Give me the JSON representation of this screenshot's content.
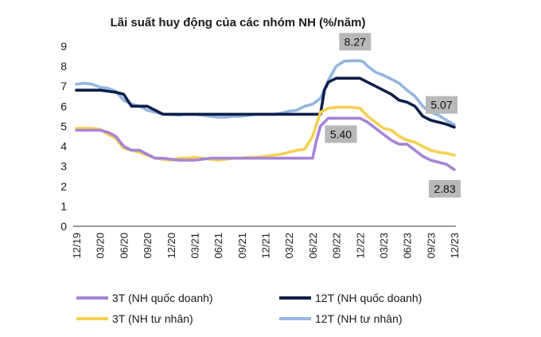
{
  "chart_data": {
    "type": "line",
    "title": "Lãi suất huy động của các nhóm NH (%/năm)",
    "ylim": [
      0,
      9
    ],
    "yticks": [
      "0",
      "1",
      "2",
      "3",
      "4",
      "5",
      "6",
      "7",
      "8",
      "9"
    ],
    "xticks": [
      "12/19",
      "03/20",
      "06/20",
      "09/20",
      "12/20",
      "03/21",
      "06/21",
      "09/21",
      "12/21",
      "03/22",
      "06/22",
      "09/22",
      "12/22",
      "03/23",
      "06/23",
      "09/23",
      "12/23"
    ],
    "xmax": 48,
    "series": [
      {
        "key": "s12_priv",
        "name": "12T (NH tư nhân)",
        "color": "#93b6e0",
        "x": [
          0,
          1,
          2,
          3,
          4,
          5,
          6,
          7,
          8,
          9,
          10,
          11,
          12,
          13,
          14,
          15,
          16,
          17,
          18,
          19,
          20,
          21,
          22,
          23,
          24,
          25,
          26,
          27,
          28,
          29,
          30,
          31,
          32,
          33,
          34,
          35,
          35.5,
          36,
          36.5,
          37,
          38,
          39,
          40,
          41,
          42,
          43,
          44,
          45,
          46,
          47,
          48
        ],
        "values": [
          7.1,
          7.15,
          7.1,
          6.95,
          6.9,
          6.75,
          6.3,
          6.1,
          6.0,
          5.8,
          5.7,
          5.6,
          5.6,
          5.55,
          5.6,
          5.6,
          5.55,
          5.5,
          5.45,
          5.45,
          5.5,
          5.5,
          5.55,
          5.6,
          5.6,
          5.6,
          5.65,
          5.75,
          5.8,
          6.0,
          6.1,
          6.4,
          7.3,
          8.0,
          8.25,
          8.27,
          8.27,
          8.27,
          8.2,
          8.0,
          7.7,
          7.55,
          7.35,
          7.15,
          6.8,
          6.5,
          6.0,
          5.7,
          5.55,
          5.3,
          5.07
        ]
      },
      {
        "key": "s12_state",
        "name": "12T (NH quốc doanh)",
        "color": "#0c1f4a",
        "x": [
          0,
          1,
          2,
          3,
          4,
          5,
          6,
          7,
          8,
          9,
          10,
          11,
          12,
          13,
          14,
          15,
          16,
          17,
          18,
          19,
          20,
          21,
          22,
          23,
          24,
          25,
          26,
          27,
          28,
          29,
          30,
          31,
          31.5,
          32,
          33,
          34,
          35,
          36,
          37,
          38,
          39,
          40,
          41,
          42,
          43,
          44,
          45,
          46,
          47,
          48
        ],
        "values": [
          6.8,
          6.8,
          6.8,
          6.8,
          6.75,
          6.7,
          6.6,
          6.0,
          6.0,
          6.0,
          5.8,
          5.6,
          5.6,
          5.6,
          5.6,
          5.6,
          5.6,
          5.6,
          5.6,
          5.6,
          5.6,
          5.6,
          5.6,
          5.6,
          5.6,
          5.6,
          5.6,
          5.6,
          5.6,
          5.6,
          5.6,
          5.6,
          6.8,
          7.2,
          7.4,
          7.4,
          7.4,
          7.4,
          7.2,
          7.0,
          6.8,
          6.6,
          6.3,
          6.2,
          6.0,
          5.5,
          5.3,
          5.2,
          5.1,
          4.95
        ]
      },
      {
        "key": "s3_priv",
        "name": "3T (NH tư nhân)",
        "color": "#f5d050",
        "x": [
          0,
          1,
          2,
          3,
          4,
          5,
          6,
          7,
          8,
          9,
          10,
          11,
          12,
          13,
          14,
          15,
          16,
          17,
          18,
          19,
          20,
          21,
          22,
          23,
          24,
          25,
          26,
          27,
          28,
          29,
          30,
          31,
          32,
          33,
          34,
          35,
          36,
          37,
          38,
          39,
          40,
          41,
          42,
          43,
          44,
          45,
          46,
          47,
          48
        ],
        "values": [
          4.9,
          4.9,
          4.9,
          4.85,
          4.6,
          4.4,
          3.9,
          3.8,
          3.7,
          3.55,
          3.4,
          3.35,
          3.3,
          3.4,
          3.4,
          3.45,
          3.4,
          3.35,
          3.3,
          3.35,
          3.4,
          3.4,
          3.45,
          3.45,
          3.5,
          3.55,
          3.6,
          3.7,
          3.8,
          3.85,
          4.5,
          5.7,
          5.9,
          5.95,
          5.95,
          5.95,
          5.9,
          5.5,
          5.2,
          4.9,
          4.8,
          4.5,
          4.3,
          4.2,
          4.0,
          3.8,
          3.7,
          3.65,
          3.55
        ]
      },
      {
        "key": "s3_state",
        "name": "3T (NH quốc doanh)",
        "color": "#a784d6",
        "x": [
          0,
          1,
          2,
          3,
          4,
          5,
          6,
          7,
          8,
          9,
          10,
          11,
          12,
          13,
          14,
          15,
          16,
          17,
          18,
          19,
          20,
          21,
          22,
          23,
          24,
          25,
          26,
          27,
          28,
          29,
          30,
          30.5,
          31,
          32,
          33,
          34,
          35,
          36,
          37,
          38,
          39,
          40,
          41,
          42,
          43,
          44,
          45,
          46,
          47,
          48
        ],
        "values": [
          4.8,
          4.8,
          4.8,
          4.8,
          4.7,
          4.5,
          4.0,
          3.8,
          3.8,
          3.6,
          3.4,
          3.4,
          3.35,
          3.3,
          3.3,
          3.3,
          3.35,
          3.4,
          3.4,
          3.4,
          3.4,
          3.4,
          3.4,
          3.4,
          3.4,
          3.4,
          3.4,
          3.4,
          3.4,
          3.4,
          3.4,
          4.3,
          5.0,
          5.4,
          5.4,
          5.4,
          5.4,
          5.4,
          5.2,
          4.9,
          4.6,
          4.3,
          4.1,
          4.1,
          3.8,
          3.5,
          3.3,
          3.2,
          3.1,
          2.83
        ]
      }
    ],
    "annotations": [
      {
        "key": "a827",
        "label": "8.27",
        "series": "s12_priv",
        "x": 35.5
      },
      {
        "key": "a540",
        "label": "5.40",
        "series": "s3_state",
        "x": 34
      },
      {
        "key": "a507",
        "label": "5.07",
        "series": "s12_priv",
        "x": 48
      },
      {
        "key": "a283",
        "label": "2.83",
        "series": "s3_state",
        "x": 48
      }
    ],
    "legend": [
      {
        "key": "s3_state",
        "label": "3T (NH quốc doanh)",
        "color": "#a784d6"
      },
      {
        "key": "s12_state",
        "label": "12T (NH quốc doanh)",
        "color": "#0c1f4a"
      },
      {
        "key": "s3_priv",
        "label": "3T (NH tư nhân)",
        "color": "#f5d050"
      },
      {
        "key": "s12_priv",
        "label": "12T (NH tư nhân)",
        "color": "#93b6e0"
      }
    ],
    "callout_color": "#b8b8b8"
  }
}
